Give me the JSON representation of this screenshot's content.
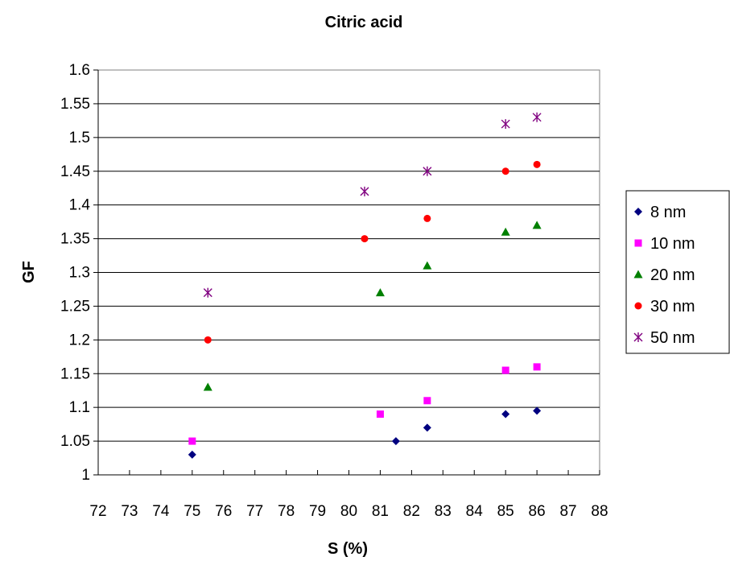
{
  "chart_data": {
    "type": "scatter",
    "title": "Citric acid",
    "xlabel": "S (%)",
    "ylabel": "GF",
    "xlim": [
      72,
      88
    ],
    "ylim": [
      1.0,
      1.6
    ],
    "xticks": [
      "72",
      "73",
      "74",
      "75",
      "76",
      "77",
      "78",
      "79",
      "80",
      "81",
      "82",
      "83",
      "84",
      "85",
      "86",
      "87",
      "88"
    ],
    "yticks": [
      "1",
      "1.05",
      "1.1",
      "1.15",
      "1.2",
      "1.25",
      "1.3",
      "1.35",
      "1.4",
      "1.45",
      "1.5",
      "1.55",
      "1.6"
    ],
    "grid": "horizontal",
    "legend_position": "right",
    "series": [
      {
        "name": "8 nm",
        "marker": "diamond",
        "color": "#000080",
        "points": [
          [
            75,
            1.03
          ],
          [
            81.5,
            1.05
          ],
          [
            82.5,
            1.07
          ],
          [
            85,
            1.09
          ],
          [
            86,
            1.095
          ]
        ]
      },
      {
        "name": "10 nm",
        "marker": "square",
        "color": "#FF00FF",
        "points": [
          [
            75,
            1.05
          ],
          [
            81,
            1.09
          ],
          [
            82.5,
            1.11
          ],
          [
            85,
            1.155
          ],
          [
            86,
            1.16
          ]
        ]
      },
      {
        "name": "20 nm",
        "marker": "triangle",
        "color": "#008000",
        "points": [
          [
            75.5,
            1.13
          ],
          [
            81,
            1.27
          ],
          [
            82.5,
            1.31
          ],
          [
            85,
            1.36
          ],
          [
            86,
            1.37
          ]
        ]
      },
      {
        "name": "30 nm",
        "marker": "circle",
        "color": "#FF0000",
        "points": [
          [
            75.5,
            1.2
          ],
          [
            80.5,
            1.35
          ],
          [
            82.5,
            1.38
          ],
          [
            85,
            1.45
          ],
          [
            86,
            1.46
          ]
        ]
      },
      {
        "name": "50 nm",
        "marker": "asterisk",
        "color": "#800080",
        "points": [
          [
            75.5,
            1.27
          ],
          [
            80.5,
            1.42
          ],
          [
            82.5,
            1.45
          ],
          [
            85,
            1.52
          ],
          [
            86,
            1.53
          ]
        ]
      }
    ]
  }
}
